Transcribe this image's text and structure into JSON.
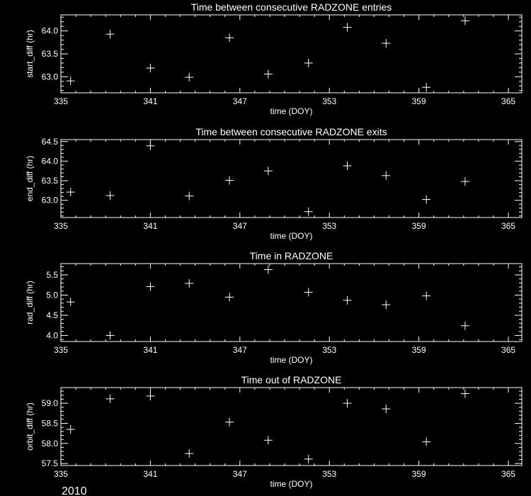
{
  "colors": {
    "background": "#000000",
    "foreground": "#ffffff"
  },
  "footer": {
    "year": "2010"
  },
  "chart_data": [
    {
      "type": "scatter",
      "marker": "plus",
      "title": "Time between consecutive RADZONE entries",
      "xlabel": "time (DOY)",
      "ylabel": "start_diff (hr)",
      "xlim": [
        335,
        365.9
      ],
      "ylim": [
        62.65,
        64.35
      ],
      "xticks": [
        335,
        341,
        347,
        353,
        359,
        365
      ],
      "yticks": [
        "63.0",
        "63.5",
        "64.0"
      ],
      "x": [
        335.65,
        338.3,
        341.0,
        343.6,
        346.3,
        348.9,
        351.6,
        354.2,
        356.8,
        359.5,
        362.1
      ],
      "y": [
        62.91,
        63.93,
        63.19,
        62.99,
        63.85,
        63.06,
        63.3,
        64.08,
        63.73,
        62.77,
        64.22
      ]
    },
    {
      "type": "scatter",
      "marker": "plus",
      "title": "Time between consecutive RADZONE exits",
      "xlabel": "time (DOY)",
      "ylabel": "end_diff (hr)",
      "xlim": [
        335,
        365.9
      ],
      "ylim": [
        62.56,
        64.55
      ],
      "xticks": [
        335,
        341,
        347,
        353,
        359,
        365
      ],
      "yticks": [
        "63.0",
        "63.5",
        "64.0",
        "64.5"
      ],
      "x": [
        335.65,
        338.3,
        341.0,
        343.6,
        346.3,
        348.9,
        351.6,
        354.2,
        356.8,
        359.5,
        362.1
      ],
      "y": [
        63.21,
        63.12,
        64.39,
        63.11,
        63.51,
        63.75,
        62.71,
        63.88,
        63.63,
        63.02,
        63.48
      ]
    },
    {
      "type": "scatter",
      "marker": "plus",
      "title": "Time in RADZONE",
      "xlabel": "time (DOY)",
      "ylabel": "rad_diff (hr)",
      "xlim": [
        335,
        365.9
      ],
      "ylim": [
        3.85,
        5.78
      ],
      "xticks": [
        335,
        341,
        347,
        353,
        359,
        365
      ],
      "yticks": [
        "4.0",
        "4.5",
        "5.0",
        "5.5"
      ],
      "x": [
        335.65,
        338.3,
        341.0,
        343.6,
        346.3,
        348.9,
        351.6,
        354.2,
        356.8,
        359.5,
        362.1
      ],
      "y": [
        4.83,
        4.0,
        5.21,
        5.29,
        4.95,
        5.63,
        5.07,
        4.87,
        4.76,
        4.98,
        4.24
      ]
    },
    {
      "type": "scatter",
      "marker": "plus",
      "title": "Time out of RADZONE",
      "xlabel": "time (DOY)",
      "ylabel": "orbit_diff (hr)",
      "xlim": [
        335,
        365.9
      ],
      "ylim": [
        57.45,
        59.39
      ],
      "xticks": [
        335,
        341,
        347,
        353,
        359,
        365
      ],
      "yticks": [
        "57.5",
        "58.0",
        "58.5",
        "59.0"
      ],
      "x": [
        335.65,
        338.3,
        341.0,
        343.6,
        346.3,
        348.9,
        351.6,
        354.2,
        356.8,
        359.5,
        362.1
      ],
      "y": [
        58.35,
        59.11,
        59.18,
        57.75,
        58.53,
        58.08,
        57.61,
        59.0,
        58.86,
        58.04,
        59.24
      ]
    }
  ]
}
